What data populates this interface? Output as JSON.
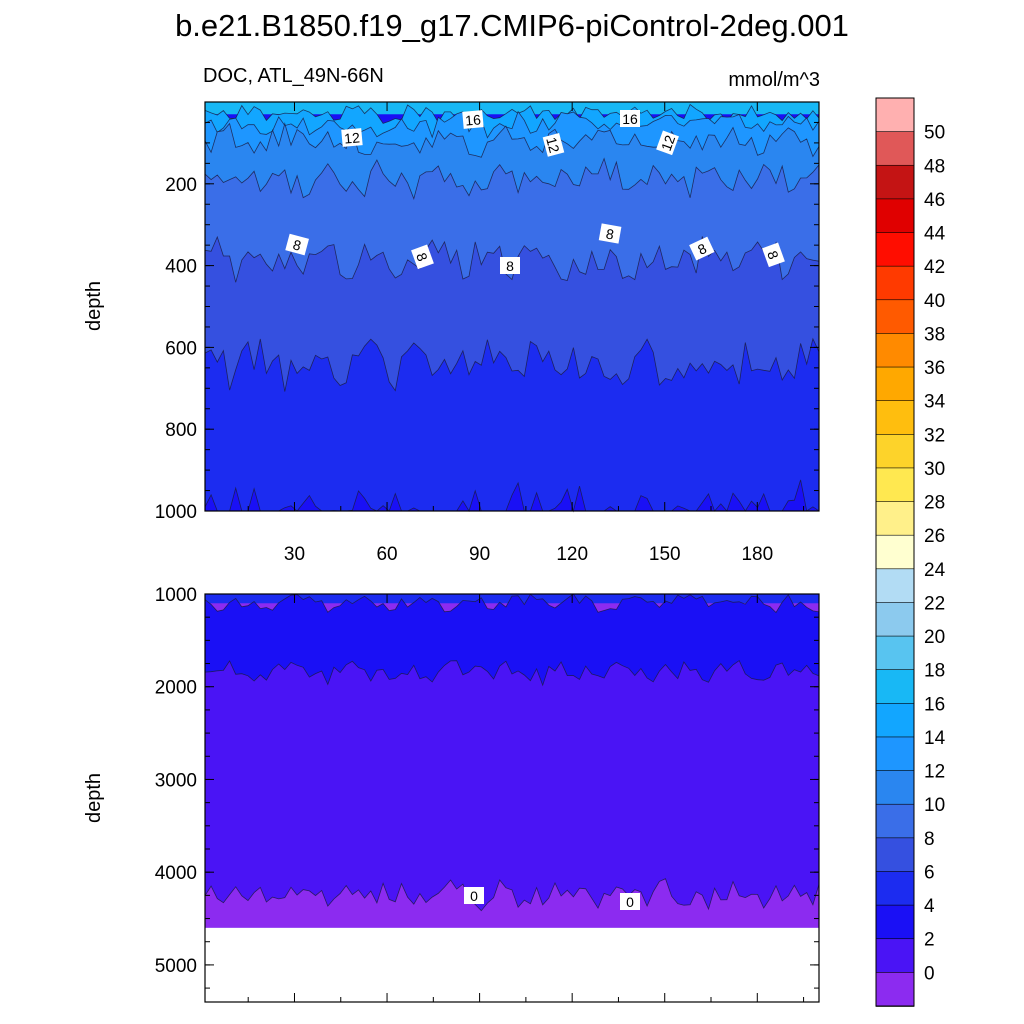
{
  "title": "b.e21.B1850.f19_g17.CMIP6-piControl-2deg.001",
  "subtitle_left": "DOC, ATL_49N-66N",
  "units": "mmol/m^3",
  "colors": {
    "levels_bins": [
      "#8c2bf0",
      "#4a14f5",
      "#1a10f5",
      "#1c2cf0",
      "#3550e0",
      "#3a6ee8",
      "#2a86f0",
      "#1e96ff",
      "#12a6ff",
      "#18b8f5",
      "#58c4f0",
      "#8ccaee",
      "#b2dcf4",
      "#ffffd0",
      "#fff08a",
      "#ffe850",
      "#fdd32a",
      "#ffbe0e",
      "#ffa800",
      "#ff8a00",
      "#ff5a00",
      "#ff3a00",
      "#ff0d00",
      "#e00000",
      "#c41414",
      "#e05858",
      "#ffb0b0"
    ],
    "bin_labels": [
      "0",
      "2",
      "4",
      "6",
      "8",
      "10",
      "12",
      "14",
      "16",
      "18",
      "20",
      "22",
      "24",
      "26",
      "28",
      "30",
      "32",
      "34",
      "36",
      "38",
      "40",
      "42",
      "44",
      "46",
      "48",
      "50"
    ]
  },
  "chart_data": [
    {
      "type": "heatmap",
      "panel": "upper",
      "xlabel": "",
      "ylabel": "depth",
      "xlim": [
        1,
        200
      ],
      "ylim": [
        1000,
        0
      ],
      "xticks": [
        30,
        60,
        90,
        120,
        150,
        180
      ],
      "yticks": [
        200,
        400,
        600,
        800,
        1000
      ],
      "contour_labels": [
        "16",
        "16",
        "12",
        "12",
        "12",
        "8",
        "8",
        "8",
        "8",
        "8",
        "8"
      ],
      "approx_isoline_depths": {
        "16": 30,
        "14": 55,
        "12": 95,
        "10": 185,
        "8": 385,
        "6": 640,
        "4": 1000
      }
    },
    {
      "type": "heatmap",
      "panel": "lower",
      "xlabel": "",
      "ylabel": "depth",
      "xlim": [
        1,
        200
      ],
      "ylim": [
        5400,
        1000
      ],
      "xticks": [
        30,
        60,
        90,
        120,
        150,
        180
      ],
      "yticks": [
        1000,
        2000,
        3000,
        4000,
        5000
      ],
      "contour_labels": [
        "0",
        "0"
      ],
      "approx_isoline_depths": {
        "4": 1100,
        "2": 1850,
        "0": 4250
      },
      "data_bottom_depth": 4600
    }
  ],
  "colorbar": {
    "labels": [
      "0",
      "2",
      "4",
      "6",
      "8",
      "10",
      "12",
      "14",
      "16",
      "18",
      "20",
      "22",
      "24",
      "26",
      "28",
      "30",
      "32",
      "34",
      "36",
      "38",
      "40",
      "42",
      "44",
      "46",
      "48",
      "50"
    ]
  }
}
